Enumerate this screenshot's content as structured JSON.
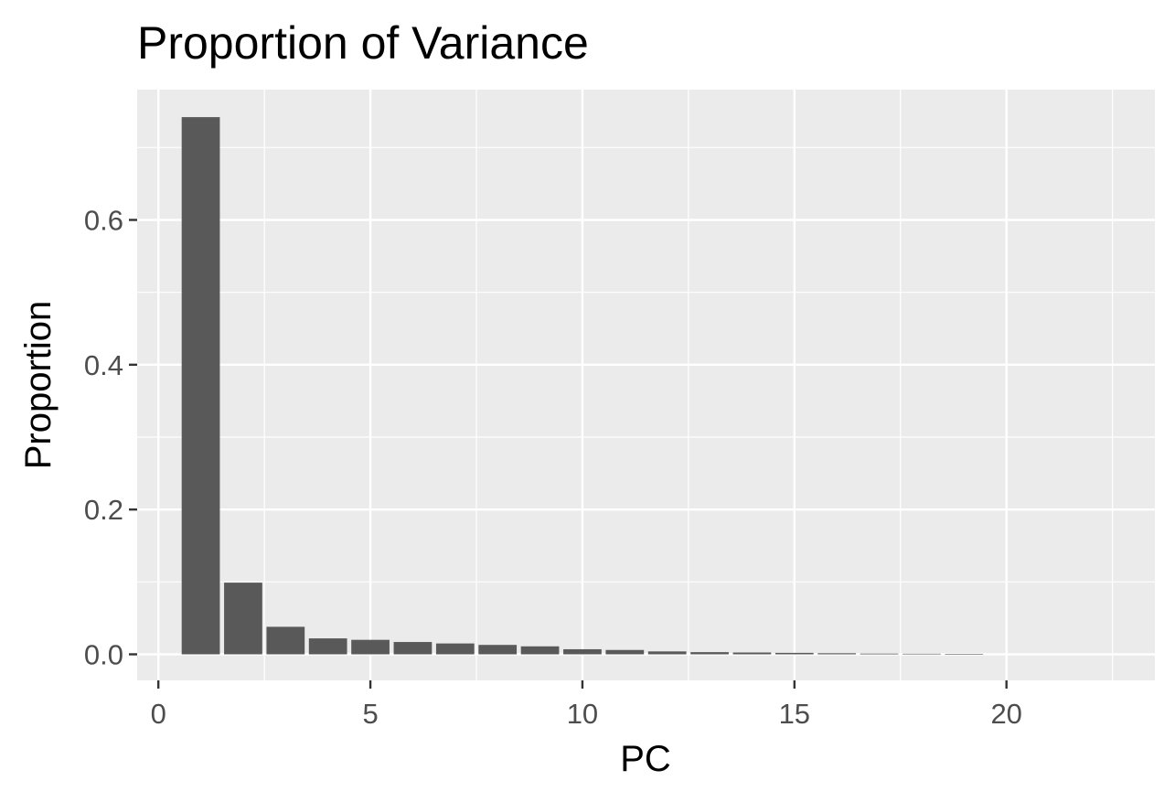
{
  "chart_data": {
    "type": "bar",
    "title": "Proportion of Variance",
    "xlabel": "PC",
    "ylabel": "Proportion",
    "x": [
      1,
      2,
      3,
      4,
      5,
      6,
      7,
      8,
      9,
      10,
      11,
      12,
      13,
      14,
      15,
      16,
      17,
      18,
      19
    ],
    "values": [
      0.742,
      0.099,
      0.038,
      0.022,
      0.02,
      0.017,
      0.015,
      0.013,
      0.011,
      0.007,
      0.006,
      0.004,
      0.003,
      0.0025,
      0.002,
      0.0015,
      0.001,
      0.0008,
      0.0005
    ],
    "xlim": [
      -0.5,
      23.5
    ],
    "ylim": [
      -0.036,
      0.78
    ],
    "x_ticks": [
      0,
      5,
      10,
      15,
      20
    ],
    "x_tick_labels": [
      "0",
      "5",
      "10",
      "15",
      "20"
    ],
    "y_ticks": [
      0.0,
      0.2,
      0.4,
      0.6
    ],
    "y_tick_labels": [
      "0.0",
      "0.2",
      "0.4",
      "0.6"
    ],
    "grid": true,
    "colors": {
      "panel_background": "#ebebeb",
      "bar_fill": "#595959",
      "grid_line": "#ffffff",
      "tick_color": "#333333"
    }
  }
}
